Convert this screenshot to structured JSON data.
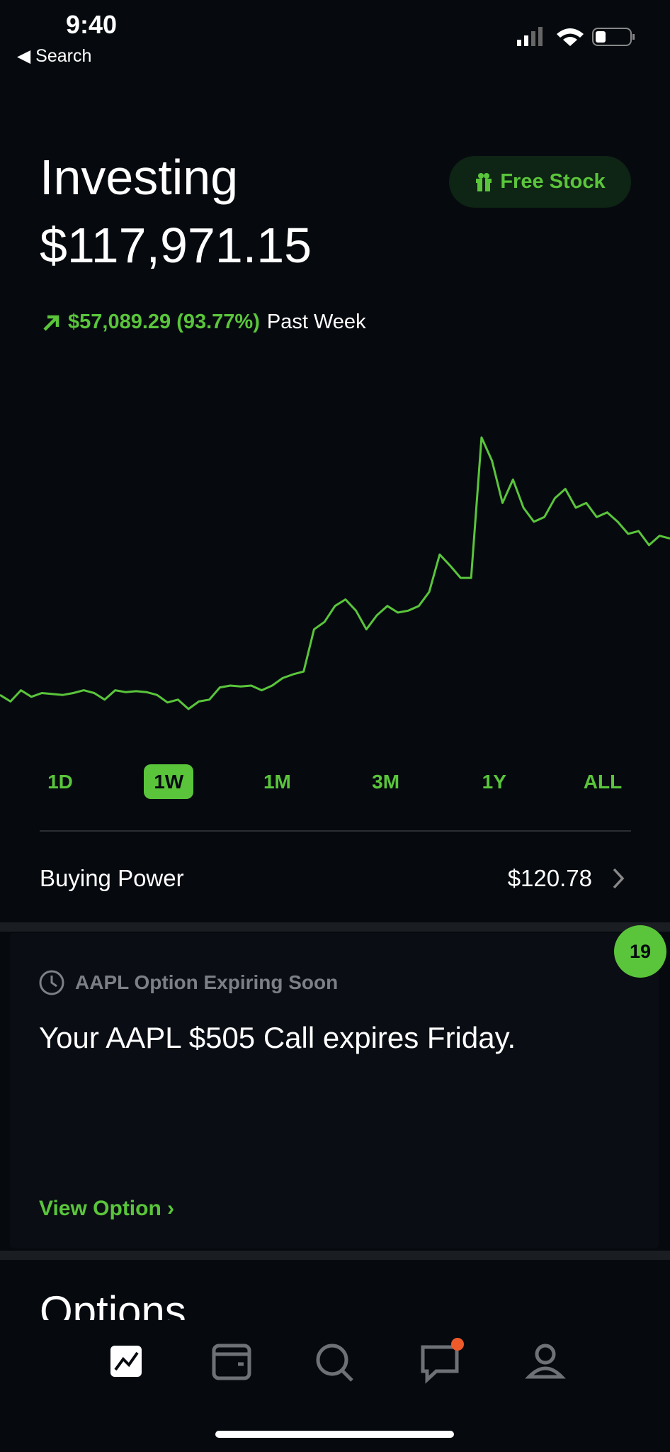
{
  "status_bar": {
    "time": "9:40",
    "back": "Search"
  },
  "header": {
    "title": "Investing",
    "value": "$117,971.15",
    "button": "Free Stock",
    "change": "$57,089.29 (93.77%)",
    "period": "Past Week"
  },
  "chart_data": {
    "type": "line",
    "color": "#5ac53b",
    "values": [
      60882,
      58460,
      62612,
      60190,
      61574,
      61228,
      60882,
      61574,
      62612,
      61574,
      59152,
      62612,
      61920,
      62266,
      61920,
      60882,
      58114,
      59152,
      55692,
      58460,
      59152,
      63650,
      64342,
      63996,
      64342,
      62612,
      64342,
      67110,
      68494,
      69532,
      85102,
      87870,
      93752,
      96174,
      92022,
      85102,
      90292,
      93752,
      91330,
      92022,
      93752,
      98942,
      112782,
      108630,
      104132,
      104132,
      156032,
      147382,
      131812,
      140462,
      130082,
      124892,
      126622,
      133542,
      137002,
      130082,
      131812,
      126622,
      128352,
      124892,
      120394,
      121432,
      116242,
      119702,
      118664
    ]
  },
  "ranges": {
    "options": [
      "1D",
      "1W",
      "1M",
      "3M",
      "1Y",
      "ALL"
    ],
    "selected": "1W"
  },
  "buying_power": {
    "label": "Buying Power",
    "value": "$120.78"
  },
  "card": {
    "badge": 19,
    "title": "AAPL Option Expiring Soon",
    "body": "Your AAPL $505 Call expires Friday.",
    "action": "View Option"
  },
  "section": {
    "title": "Options"
  }
}
